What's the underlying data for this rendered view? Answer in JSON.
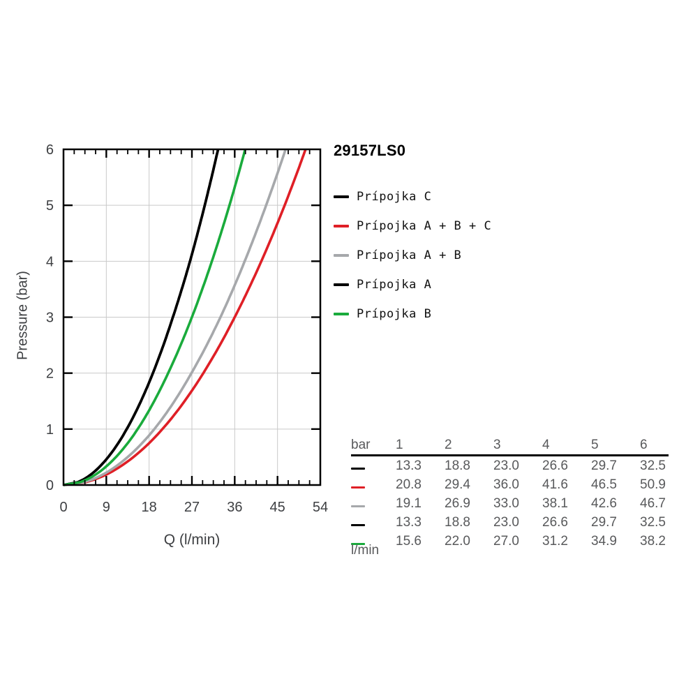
{
  "title": "29157LS0",
  "colors": {
    "border": "#000000",
    "grid": "#c9c9c9",
    "axis_text": "#3d3f42",
    "table_text": "#58595b",
    "black": "#000000",
    "red": "#df1f26",
    "gray": "#a6a8ab",
    "green": "#1aab3c"
  },
  "chart_data": {
    "type": "line",
    "title": "29157LS0",
    "xlabel": "Q (l/min)",
    "ylabel": "Pressure (bar)",
    "xlim": [
      0,
      54
    ],
    "ylim": [
      0,
      6
    ],
    "x_major_ticks": [
      0,
      9,
      18,
      27,
      36,
      45,
      54
    ],
    "x_minor_step": 2.25,
    "y_major_ticks": [
      0,
      1,
      2,
      3,
      4,
      5,
      6
    ],
    "grid": true,
    "legend_position": "right",
    "note": "Each curve passes through (flow, pressure) anchors; flow values below are l/min at 1..6 bar, curves start at origin",
    "series": [
      {
        "name": "Prípojka C",
        "color": "#000000",
        "pressures_bar": [
          1,
          2,
          3,
          4,
          5,
          6
        ],
        "flow_l_min": [
          13.3,
          18.8,
          23.0,
          26.6,
          29.7,
          32.5
        ]
      },
      {
        "name": "Prípojka A + B + C",
        "color": "#df1f26",
        "pressures_bar": [
          1,
          2,
          3,
          4,
          5,
          6
        ],
        "flow_l_min": [
          20.8,
          29.4,
          36.0,
          41.6,
          46.5,
          50.9
        ]
      },
      {
        "name": "Prípojka A + B",
        "color": "#a6a8ab",
        "pressures_bar": [
          1,
          2,
          3,
          4,
          5,
          6
        ],
        "flow_l_min": [
          19.1,
          26.9,
          33.0,
          38.1,
          42.6,
          46.7
        ]
      },
      {
        "name": "Prípojka A",
        "color": "#000000",
        "pressures_bar": [
          1,
          2,
          3,
          4,
          5,
          6
        ],
        "flow_l_min": [
          13.3,
          18.8,
          23.0,
          26.6,
          29.7,
          32.5
        ]
      },
      {
        "name": "Prípojka B",
        "color": "#1aab3c",
        "pressures_bar": [
          1,
          2,
          3,
          4,
          5,
          6
        ],
        "flow_l_min": [
          15.6,
          22.0,
          27.0,
          31.2,
          34.9,
          38.2
        ]
      }
    ]
  },
  "table": {
    "header": [
      "bar",
      "1",
      "2",
      "3",
      "4",
      "5",
      "6"
    ],
    "rows": [
      {
        "swatch_color": "#000000",
        "values": [
          "13.3",
          "18.8",
          "23.0",
          "26.6",
          "29.7",
          "32.5"
        ]
      },
      {
        "swatch_color": "#df1f26",
        "values": [
          "20.8",
          "29.4",
          "36.0",
          "41.6",
          "46.5",
          "50.9"
        ]
      },
      {
        "swatch_color": "#a6a8ab",
        "values": [
          "19.1",
          "26.9",
          "33.0",
          "38.1",
          "42.6",
          "46.7"
        ]
      },
      {
        "swatch_color": "#000000",
        "values": [
          "13.3",
          "18.8",
          "23.0",
          "26.6",
          "29.7",
          "32.5"
        ]
      },
      {
        "swatch_color": "#1aab3c",
        "values": [
          "15.6",
          "22.0",
          "27.0",
          "31.2",
          "34.9",
          "38.2"
        ]
      }
    ],
    "footer": "l/min"
  }
}
